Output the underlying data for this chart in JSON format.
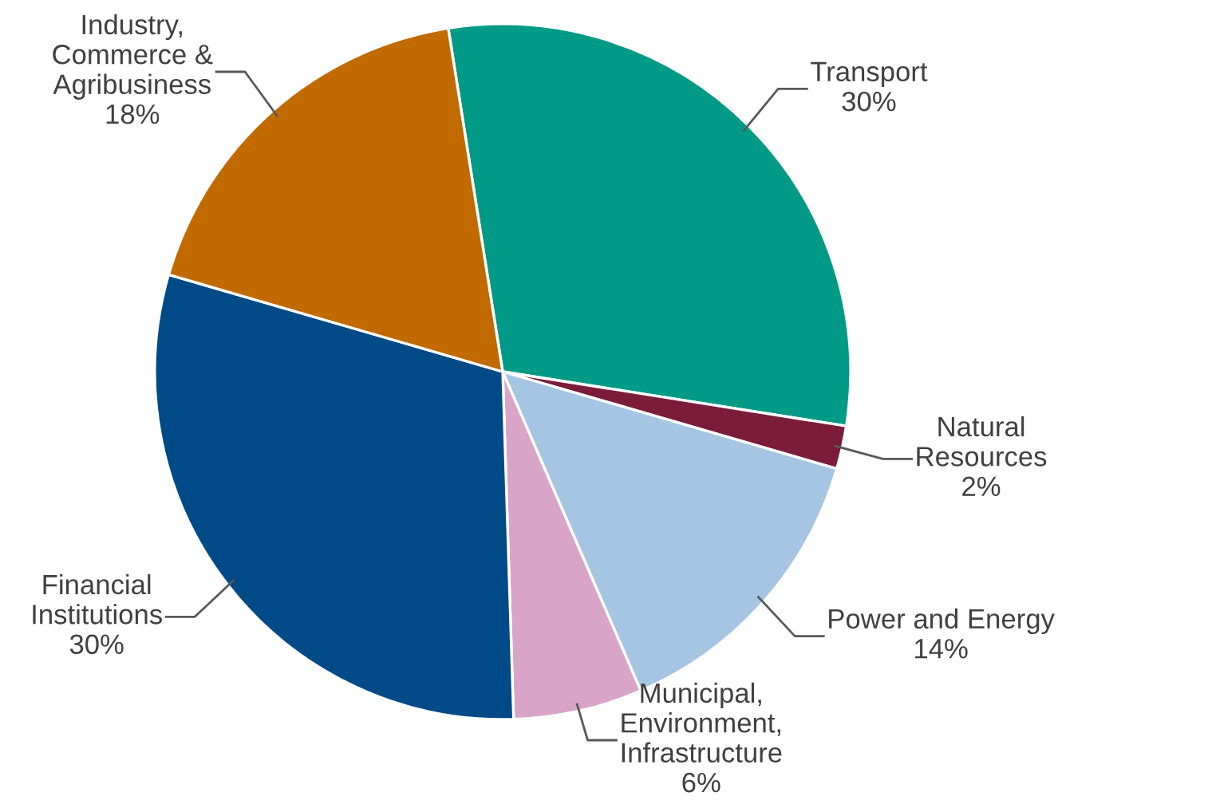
{
  "chart_data": {
    "type": "pie",
    "categories": [
      "Transport",
      "Natural Resources",
      "Power and Energy",
      "Municipal, Environment, Infrastructure",
      "Financial Institutions",
      "Industry, Commerce & Agribusiness"
    ],
    "values": [
      30,
      2,
      14,
      6,
      30,
      18
    ],
    "colors": [
      "#009a87",
      "#7b1c3a",
      "#a5c5e3",
      "#d8a5c8",
      "#004a87",
      "#c06a00"
    ],
    "value_labels": [
      "30%",
      "2%",
      "14%",
      "6%",
      "30%",
      "18%"
    ],
    "legend": false
  }
}
